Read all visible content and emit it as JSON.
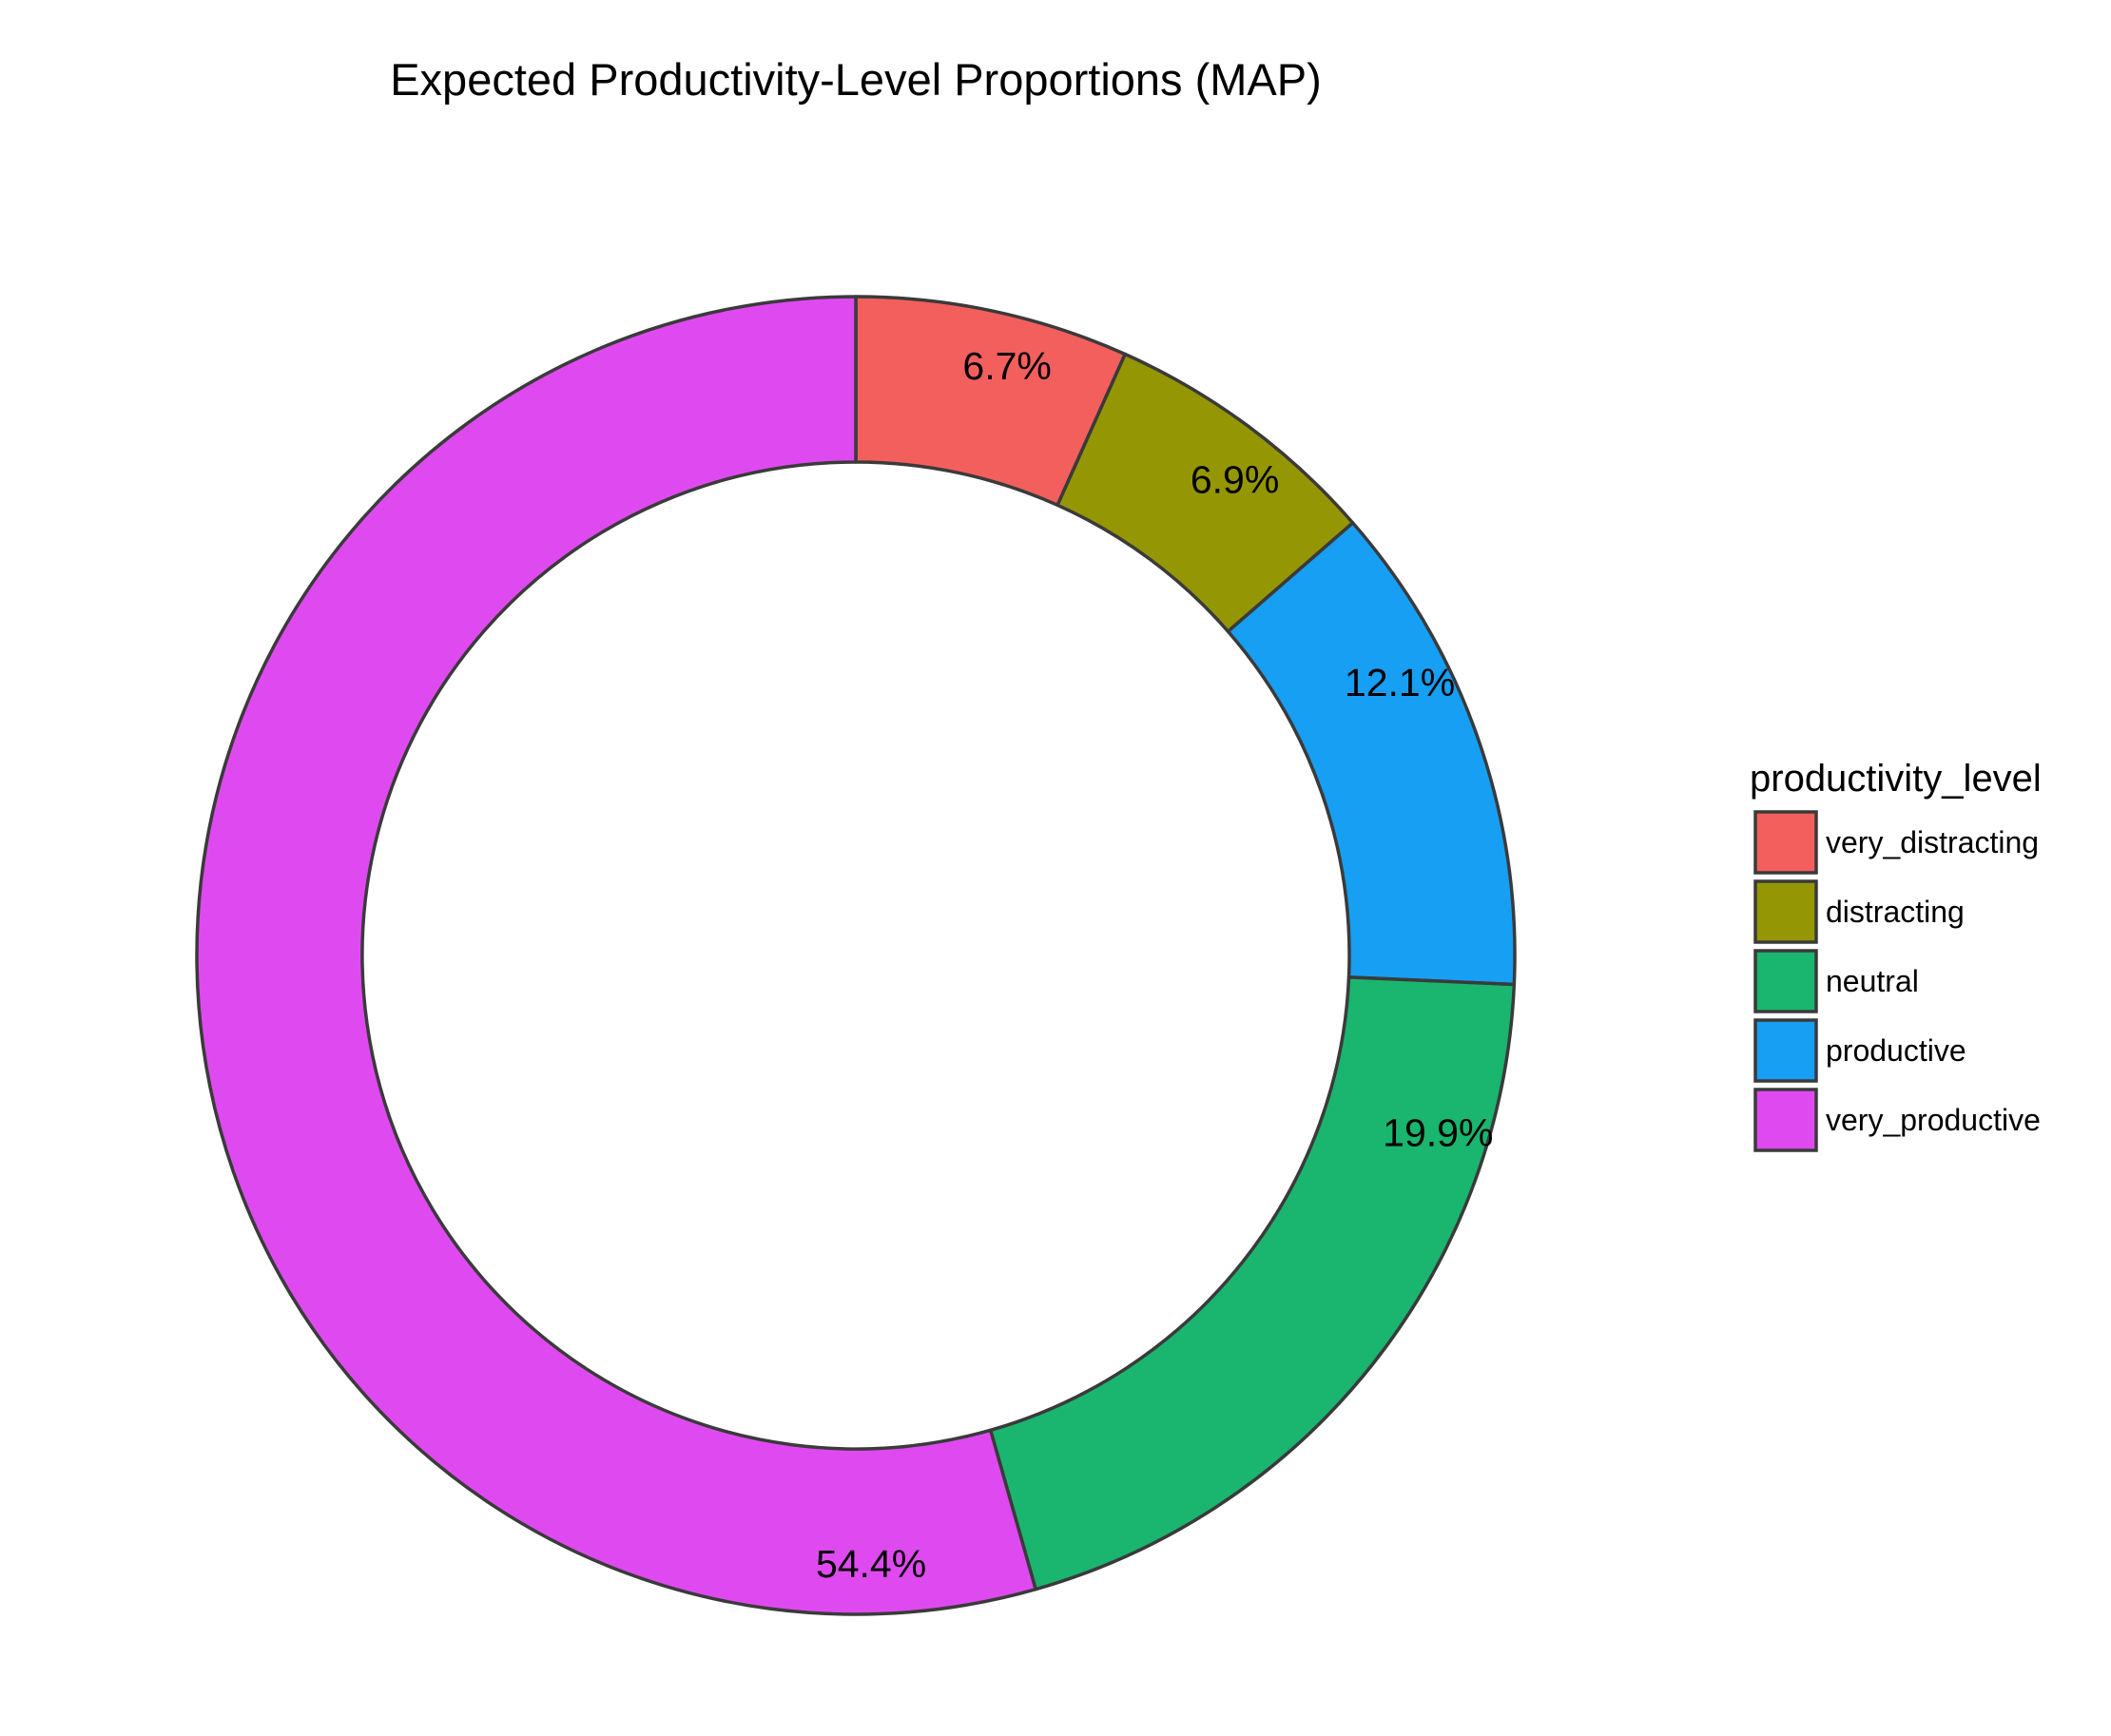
{
  "chart_data": {
    "type": "pie",
    "style": "donut",
    "title": "Expected Productivity-Level Proportions (MAP)",
    "legend_title": "productivity_level",
    "legend_position": "right",
    "slices": [
      {
        "name": "very_distracting",
        "value": 6.7,
        "label": "6.7%",
        "color": "#F35F5C"
      },
      {
        "name": "distracting",
        "value": 6.9,
        "label": "6.9%",
        "color": "#949603"
      },
      {
        "name": "productive",
        "value": 12.1,
        "label": "12.1%",
        "color": "#169FF3"
      },
      {
        "name": "neutral",
        "value": 19.9,
        "label": "19.9%",
        "color": "#1AB56E"
      },
      {
        "name": "very_productive",
        "value": 54.4,
        "label": "54.4%",
        "color": "#DF4AF0"
      }
    ],
    "legend": [
      {
        "name": "very_distracting",
        "color": "#F35F5C"
      },
      {
        "name": "distracting",
        "color": "#949603"
      },
      {
        "name": "neutral",
        "color": "#1AB56E"
      },
      {
        "name": "productive",
        "color": "#169FF3"
      },
      {
        "name": "very_productive",
        "color": "#DF4AF0"
      }
    ],
    "edge_color": "#3A3A3A"
  }
}
